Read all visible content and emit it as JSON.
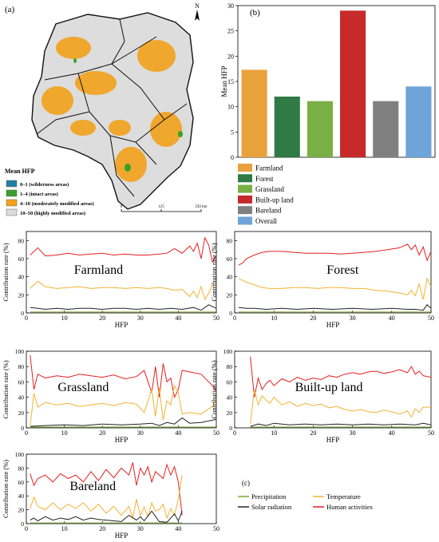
{
  "panel_labels": {
    "a": "(a)",
    "b": "(b)",
    "c": "(c)"
  },
  "map": {
    "north": "N",
    "legend_title": "Mean HFP",
    "legend": [
      {
        "label": "0–1 (wilderness areas)",
        "color": "#1f7fa6"
      },
      {
        "label": "1–4 (intact areas)",
        "color": "#3aa02a"
      },
      {
        "label": "4–10 (moderately modified areas)",
        "color": "#f2a21a"
      },
      {
        "label": "10–50 (highly modified areas)",
        "color": "#dcdcdc"
      }
    ],
    "scale_labels": [
      "0",
      "125",
      "250 km"
    ]
  },
  "line_legend": [
    {
      "label": "Precipitation",
      "color": "#7aa832"
    },
    {
      "label": "Temperature",
      "color": "#f2b233"
    },
    {
      "label": "Solar radiation",
      "color": "#222222"
    },
    {
      "label": "Human activities",
      "color": "#e52020"
    }
  ],
  "chart_data": [
    {
      "type": "bar",
      "ylabel": "Mean HFP",
      "ylim": [
        0,
        30
      ],
      "yticks": [
        0,
        5,
        10,
        15,
        20,
        25,
        30
      ],
      "categories": [
        "Farmland",
        "Forest",
        "Grassland",
        "Built-up land",
        "Bareland",
        "Overall"
      ],
      "values": [
        17.3,
        12.0,
        11.1,
        29.0,
        11.1,
        14.0
      ],
      "colors": [
        "#e9a23b",
        "#2f7a45",
        "#78b045",
        "#c62a2a",
        "#808080",
        "#6fa4d8"
      ],
      "legend": [
        "Farmland",
        "Forest",
        "Grassland",
        "Built-up land",
        "Bareland",
        "Overall"
      ]
    },
    {
      "type": "line",
      "title": "Farmland",
      "xlabel": "HFP",
      "ylabel": "Contribution rate (%)",
      "xlim": [
        0,
        50
      ],
      "ylim": [
        0,
        90
      ],
      "xticks": [
        0,
        10,
        20,
        30,
        40,
        50
      ],
      "yticks": [
        0,
        20,
        40,
        60,
        80
      ],
      "series": [
        {
          "name": "Human activities",
          "x": [
            1,
            3,
            5,
            8,
            11,
            14,
            17,
            20,
            23,
            26,
            29,
            32,
            35,
            37,
            39,
            41,
            43,
            44,
            45,
            46,
            47,
            48,
            49,
            50
          ],
          "y": [
            64,
            72,
            63,
            64,
            66,
            64,
            65,
            66,
            64,
            65,
            64,
            64,
            65,
            66,
            71,
            66,
            74,
            68,
            77,
            60,
            83,
            75,
            56,
            64
          ]
        },
        {
          "name": "Temperature",
          "x": [
            1,
            3,
            5,
            8,
            11,
            14,
            17,
            20,
            23,
            26,
            29,
            32,
            35,
            37,
            39,
            41,
            43,
            44,
            45,
            46,
            47,
            48,
            49,
            50
          ],
          "y": [
            27,
            35,
            29,
            27,
            28,
            29,
            27,
            28,
            28,
            27,
            28,
            27,
            28,
            27,
            25,
            26,
            18,
            24,
            17,
            29,
            15,
            22,
            31,
            30
          ]
        },
        {
          "name": "Solar radiation",
          "x": [
            1,
            3,
            5,
            8,
            11,
            14,
            17,
            20,
            23,
            26,
            29,
            32,
            35,
            38,
            41,
            44,
            46,
            48,
            50
          ],
          "y": [
            6,
            5,
            4,
            5,
            4,
            5,
            5,
            4,
            5,
            5,
            4,
            5,
            4,
            5,
            4,
            6,
            3,
            9,
            5
          ]
        },
        {
          "name": "Precipitation",
          "x": [
            1,
            10,
            20,
            30,
            40,
            50
          ],
          "y": [
            1,
            1,
            1,
            1,
            1,
            1
          ]
        }
      ]
    },
    {
      "type": "line",
      "title": "Forest",
      "xlabel": "HFP",
      "ylabel": "Contribution rate (%)",
      "xlim": [
        0,
        50
      ],
      "ylim": [
        0,
        90
      ],
      "xticks": [
        0,
        10,
        20,
        30,
        40,
        50
      ],
      "yticks": [
        0,
        20,
        40,
        60,
        80
      ],
      "series": [
        {
          "name": "Human activities",
          "x": [
            1,
            2,
            3,
            5,
            7,
            9,
            12,
            15,
            18,
            21,
            24,
            27,
            30,
            33,
            36,
            39,
            42,
            44,
            45,
            46,
            47,
            48,
            49,
            50
          ],
          "y": [
            53,
            55,
            60,
            64,
            67,
            68,
            68,
            67,
            66,
            66,
            66,
            65,
            66,
            67,
            68,
            70,
            72,
            76,
            70,
            75,
            64,
            73,
            58,
            68
          ]
        },
        {
          "name": "Temperature",
          "x": [
            1,
            2,
            3,
            5,
            7,
            9,
            12,
            15,
            18,
            21,
            24,
            27,
            30,
            33,
            36,
            39,
            42,
            44,
            45,
            46,
            47,
            48,
            49,
            50
          ],
          "y": [
            38,
            36,
            34,
            31,
            28,
            27,
            27,
            28,
            28,
            27,
            28,
            28,
            27,
            27,
            25,
            24,
            22,
            20,
            25,
            19,
            32,
            15,
            38,
            29
          ]
        },
        {
          "name": "Solar radiation",
          "x": [
            1,
            3,
            5,
            8,
            12,
            16,
            20,
            25,
            30,
            35,
            40,
            44,
            46,
            48,
            49,
            50
          ],
          "y": [
            6,
            5,
            5,
            4,
            5,
            4,
            5,
            4,
            5,
            4,
            5,
            4,
            4,
            3,
            9,
            5
          ]
        },
        {
          "name": "Precipitation",
          "x": [
            1,
            10,
            20,
            30,
            40,
            50
          ],
          "y": [
            1,
            1,
            1,
            1,
            1,
            1
          ]
        }
      ]
    },
    {
      "type": "line",
      "title": "Grassland",
      "xlabel": "HFP",
      "ylabel": "Contribution rate (%)",
      "xlim": [
        0,
        50
      ],
      "ylim": [
        0,
        100
      ],
      "xticks": [
        0,
        10,
        20,
        30,
        40,
        50
      ],
      "yticks": [
        0,
        20,
        40,
        60,
        80,
        100
      ],
      "series": [
        {
          "name": "Human activities",
          "x": [
            1,
            2,
            3,
            5,
            8,
            11,
            14,
            17,
            20,
            23,
            26,
            29,
            31,
            33,
            34,
            35,
            36,
            37,
            38,
            39,
            40,
            41,
            43,
            46,
            49,
            50
          ],
          "y": [
            95,
            50,
            70,
            65,
            68,
            66,
            70,
            68,
            66,
            69,
            64,
            67,
            75,
            46,
            80,
            40,
            84,
            60,
            65,
            40,
            50,
            75,
            73,
            70,
            55,
            48
          ]
        },
        {
          "name": "Temperature",
          "x": [
            1,
            2,
            3,
            5,
            8,
            11,
            14,
            17,
            20,
            23,
            26,
            29,
            31,
            33,
            34,
            35,
            36,
            37,
            38,
            39,
            40,
            41,
            43,
            46,
            49,
            50
          ],
          "y": [
            3,
            45,
            27,
            33,
            30,
            32,
            28,
            30,
            32,
            29,
            33,
            31,
            20,
            50,
            15,
            52,
            10,
            35,
            30,
            55,
            46,
            18,
            20,
            18,
            28,
            38
          ]
        },
        {
          "name": "Solar radiation",
          "x": [
            1,
            5,
            10,
            15,
            20,
            25,
            30,
            33,
            35,
            37,
            39,
            41,
            43,
            46,
            50
          ],
          "y": [
            2,
            3,
            4,
            3,
            5,
            4,
            5,
            6,
            3,
            7,
            5,
            13,
            6,
            7,
            11
          ]
        },
        {
          "name": "Precipitation",
          "x": [
            1,
            10,
            20,
            30,
            40,
            50
          ],
          "y": [
            1,
            1,
            1,
            1,
            1,
            1
          ]
        }
      ]
    },
    {
      "type": "line",
      "title": "Built-up land",
      "xlabel": "HFP",
      "ylabel": "Contribution rate (%)",
      "xlim": [
        0,
        50
      ],
      "ylim": [
        0,
        100
      ],
      "xticks": [
        0,
        10,
        20,
        30,
        40,
        50
      ],
      "yticks": [
        0,
        20,
        40,
        60,
        80,
        100
      ],
      "series": [
        {
          "name": "Human activities",
          "x": [
            4,
            5,
            6,
            7,
            8,
            9,
            10,
            12,
            14,
            16,
            18,
            20,
            22,
            24,
            26,
            28,
            30,
            32,
            34,
            36,
            38,
            40,
            42,
            44,
            45,
            46,
            47,
            48,
            50
          ],
          "y": [
            93,
            40,
            65,
            50,
            58,
            62,
            55,
            64,
            60,
            66,
            62,
            65,
            63,
            68,
            66,
            70,
            72,
            70,
            73,
            74,
            71,
            73,
            76,
            72,
            80,
            70,
            74,
            68,
            66
          ]
        },
        {
          "name": "Temperature",
          "x": [
            4,
            5,
            6,
            7,
            8,
            9,
            10,
            12,
            14,
            16,
            18,
            20,
            22,
            24,
            26,
            28,
            30,
            32,
            34,
            36,
            38,
            40,
            42,
            44,
            45,
            46,
            47,
            48,
            50
          ],
          "y": [
            5,
            50,
            30,
            42,
            36,
            32,
            40,
            30,
            34,
            28,
            32,
            29,
            31,
            26,
            28,
            24,
            22,
            24,
            21,
            20,
            23,
            21,
            18,
            22,
            14,
            25,
            20,
            27,
            27
          ]
        },
        {
          "name": "Solar radiation",
          "x": [
            4,
            6,
            8,
            10,
            14,
            18,
            22,
            26,
            30,
            34,
            38,
            42,
            46,
            48,
            50
          ],
          "y": [
            2,
            5,
            3,
            6,
            4,
            5,
            4,
            5,
            4,
            5,
            4,
            5,
            4,
            6,
            4
          ]
        },
        {
          "name": "Precipitation",
          "x": [
            4,
            10,
            20,
            30,
            40,
            50
          ],
          "y": [
            1,
            1,
            1,
            1,
            1,
            1
          ]
        }
      ]
    },
    {
      "type": "line",
      "title": "Bareland",
      "xlabel": "HFP",
      "ylabel": "Contribution rate (%)",
      "xlim": [
        0,
        50
      ],
      "ylim": [
        0,
        100
      ],
      "xticks": [
        0,
        10,
        20,
        30,
        40,
        50
      ],
      "yticks": [
        0,
        20,
        40,
        60,
        80,
        100
      ],
      "series": [
        {
          "name": "Human activities",
          "x": [
            1,
            2,
            3,
            5,
            7,
            9,
            11,
            13,
            15,
            17,
            19,
            21,
            23,
            25,
            27,
            28,
            29,
            30,
            31,
            32,
            33,
            34,
            35,
            36,
            37,
            38,
            39,
            40,
            41
          ],
          "y": [
            72,
            55,
            65,
            70,
            60,
            72,
            65,
            70,
            60,
            75,
            62,
            78,
            66,
            80,
            70,
            88,
            55,
            80,
            70,
            82,
            60,
            75,
            70,
            65,
            85,
            70,
            82,
            60,
            12
          ]
        },
        {
          "name": "Temperature",
          "x": [
            1,
            2,
            3,
            5,
            7,
            9,
            11,
            13,
            15,
            17,
            19,
            21,
            23,
            25,
            27,
            28,
            29,
            30,
            31,
            32,
            33,
            34,
            35,
            36,
            37,
            38,
            39,
            40,
            41
          ],
          "y": [
            22,
            38,
            25,
            20,
            30,
            20,
            28,
            22,
            30,
            18,
            28,
            15,
            25,
            12,
            25,
            8,
            35,
            12,
            24,
            10,
            30,
            18,
            20,
            28,
            8,
            22,
            12,
            35,
            70
          ]
        },
        {
          "name": "Solar radiation",
          "x": [
            1,
            2,
            3,
            5,
            7,
            9,
            11,
            13,
            15,
            17,
            19,
            21,
            23,
            25,
            27,
            29,
            30,
            31,
            33,
            35,
            37,
            39,
            40,
            41
          ],
          "y": [
            5,
            8,
            4,
            10,
            5,
            8,
            6,
            10,
            5,
            8,
            6,
            5,
            4,
            3,
            12,
            5,
            10,
            4,
            18,
            3,
            2,
            14,
            4,
            18
          ]
        },
        {
          "name": "Precipitation",
          "x": [
            1,
            10,
            20,
            30,
            41
          ],
          "y": [
            1,
            1,
            1,
            1,
            1
          ]
        }
      ]
    }
  ]
}
